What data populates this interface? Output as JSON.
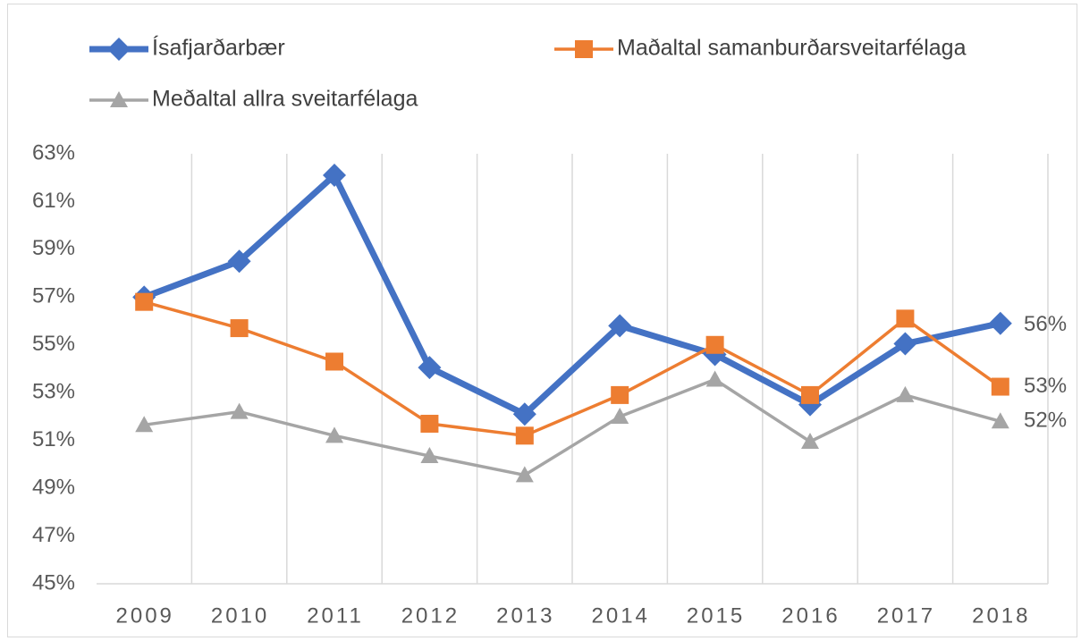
{
  "chart_data": {
    "type": "line",
    "categories": [
      "2009",
      "2010",
      "2011",
      "2012",
      "2013",
      "2014",
      "2015",
      "2016",
      "2017",
      "2018"
    ],
    "series": [
      {
        "name": "Ísafjarðarbær",
        "color": "#4472c4",
        "marker": "diamond",
        "values": [
          57.0,
          58.5,
          62.1,
          54.05,
          52.1,
          55.8,
          54.6,
          52.5,
          55.05,
          55.9
        ],
        "value_labels": [
          null,
          null,
          null,
          null,
          null,
          null,
          null,
          null,
          null,
          "56%"
        ]
      },
      {
        "name": "Maðaltal samanburðarsveitarfélaga",
        "color": "#ed7d31",
        "marker": "square",
        "values": [
          56.8,
          55.7,
          54.3,
          51.7,
          51.2,
          52.9,
          55.0,
          52.9,
          56.1,
          53.25
        ],
        "value_labels": [
          null,
          null,
          null,
          null,
          null,
          null,
          null,
          null,
          null,
          "53%"
        ]
      },
      {
        "name": "Meðaltal allra sveitarfélaga",
        "color": "#a5a5a5",
        "marker": "triangle",
        "values": [
          51.65,
          52.2,
          51.2,
          50.35,
          49.55,
          52.0,
          53.55,
          50.95,
          52.9,
          51.8
        ],
        "value_labels": [
          null,
          null,
          null,
          null,
          null,
          null,
          null,
          null,
          null,
          "52%"
        ]
      }
    ],
    "ylim": [
      45,
      63
    ],
    "yticks": [
      {
        "value": 45,
        "label": "45%"
      },
      {
        "value": 47,
        "label": "47%"
      },
      {
        "value": 49,
        "label": "49%"
      },
      {
        "value": 51,
        "label": "51%"
      },
      {
        "value": 53,
        "label": "53%"
      },
      {
        "value": 55,
        "label": "55%"
      },
      {
        "value": 57,
        "label": "57%"
      },
      {
        "value": 59,
        "label": "59%"
      },
      {
        "value": 61,
        "label": "61%"
      },
      {
        "value": 63,
        "label": "63%"
      }
    ],
    "grid": "vertical"
  }
}
